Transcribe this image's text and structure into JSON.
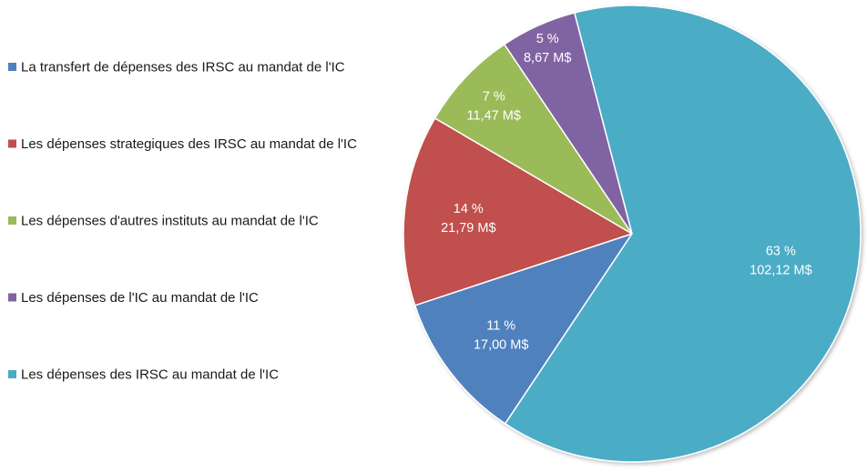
{
  "chart_data": {
    "type": "pie",
    "title": "",
    "legend_position": "left",
    "series": [
      {
        "name": "La transfert de dépenses des IRSC au mandat de l'IC",
        "value": 17.0,
        "percent_label": "11 %",
        "value_label": "17,00 M$",
        "color": "#4f81bd"
      },
      {
        "name": "Les dépenses strategiques des IRSC au mandat de l'IC",
        "value": 21.79,
        "percent_label": "14 %",
        "value_label": "21,79 M$",
        "color": "#c0504d"
      },
      {
        "name": "Les dépenses d'autres instituts au mandat de l'IC",
        "value": 11.47,
        "percent_label": "7 %",
        "value_label": "11,47 M$",
        "color": "#9bbb59"
      },
      {
        "name": "Les dépenses de l'IC au mandat de l'IC",
        "value": 8.67,
        "percent_label": "5 %",
        "value_label": "8,67 M$",
        "color": "#8064a2"
      },
      {
        "name": "Les dépenses des IRSC au mandat de l'IC",
        "value": 102.12,
        "percent_label": "63 %",
        "value_label": "102,12 M$",
        "color": "#4bacc6"
      }
    ]
  }
}
